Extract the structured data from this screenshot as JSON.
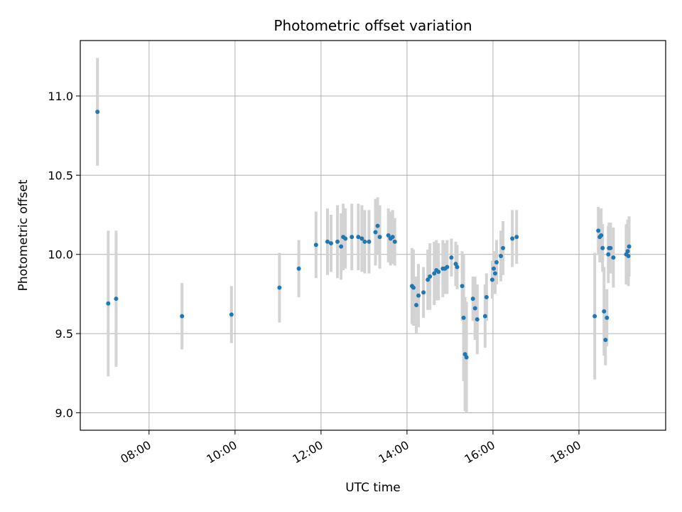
{
  "chart_data": {
    "type": "scatter",
    "title": "Photometric offset variation",
    "xlabel": "UTC time",
    "ylabel": "Photometric offset",
    "x_tick_labels": [
      "08:00",
      "10:00",
      "12:00",
      "14:00",
      "16:00",
      "18:00"
    ],
    "y_tick_labels": [
      "9.0",
      "9.5",
      "10.0",
      "10.5",
      "11.0"
    ],
    "xlim": [
      "06:24",
      "20:01"
    ],
    "ylim": [
      8.89,
      11.35
    ],
    "grid": true,
    "marker_color": "#1f77b4",
    "errorbar_color": "#d3d3d3",
    "series": [
      {
        "x": [
          "06:48",
          "07:03",
          "07:14",
          "08:46",
          "09:55",
          "11:02",
          "11:29",
          "11:53",
          "12:09",
          "12:14",
          "12:23",
          "12:28",
          "12:31",
          "12:34",
          "12:43",
          "12:52",
          "12:57",
          "13:01",
          "13:07",
          "13:16",
          "13:19",
          "13:22",
          "13:34",
          "13:37",
          "13:40",
          "13:43",
          "14:07",
          "14:09",
          "14:13",
          "14:16",
          "14:23",
          "14:29",
          "14:32",
          "14:38",
          "14:41",
          "14:44",
          "14:50",
          "14:53",
          "14:56",
          "15:02",
          "15:08",
          "15:10",
          "15:17",
          "15:19",
          "15:21",
          "15:23",
          "15:32",
          "15:35",
          "15:38",
          "15:49",
          "15:51",
          "15:59",
          "16:01",
          "16:03",
          "16:05",
          "16:11",
          "16:14",
          "16:27",
          "16:33",
          "18:22",
          "18:27",
          "18:29",
          "18:31",
          "18:33",
          "18:35",
          "18:37",
          "18:39",
          "18:41",
          "18:42",
          "18:44",
          "18:48",
          "19:06",
          "19:08",
          "19:09",
          "19:10"
        ],
        "y": [
          10.9,
          9.69,
          9.72,
          9.61,
          9.62,
          9.79,
          9.91,
          10.06,
          10.08,
          10.07,
          10.08,
          10.05,
          10.11,
          10.1,
          10.11,
          10.11,
          10.1,
          10.08,
          10.08,
          10.14,
          10.18,
          10.11,
          10.12,
          10.1,
          10.11,
          10.08,
          9.8,
          9.79,
          9.68,
          9.74,
          9.76,
          9.84,
          9.86,
          9.88,
          9.9,
          9.89,
          9.91,
          9.91,
          9.92,
          9.98,
          9.94,
          9.92,
          9.8,
          9.6,
          9.37,
          9.35,
          9.72,
          9.66,
          9.59,
          9.61,
          9.73,
          9.84,
          9.91,
          9.88,
          9.95,
          9.99,
          10.04,
          10.1,
          10.11,
          9.61,
          10.15,
          10.11,
          10.12,
          10.04,
          9.64,
          9.46,
          9.6,
          10.0,
          10.04,
          10.04,
          9.98,
          10.0,
          10.02,
          9.99,
          10.05
        ],
        "err": [
          0.34,
          0.46,
          0.43,
          0.21,
          0.18,
          0.22,
          0.18,
          0.21,
          0.21,
          0.18,
          0.23,
          0.21,
          0.21,
          0.19,
          0.21,
          0.21,
          0.21,
          0.2,
          0.2,
          0.21,
          0.18,
          0.2,
          0.17,
          0.17,
          0.17,
          0.15,
          0.24,
          0.24,
          0.18,
          0.2,
          0.16,
          0.19,
          0.21,
          0.2,
          0.19,
          0.18,
          0.18,
          0.16,
          0.17,
          0.12,
          0.14,
          0.14,
          0.22,
          0.4,
          0.36,
          0.35,
          0.14,
          0.2,
          0.22,
          0.2,
          0.15,
          0.12,
          0.11,
          0.13,
          0.14,
          0.16,
          0.17,
          0.18,
          0.17,
          0.4,
          0.15,
          0.16,
          0.17,
          0.15,
          0.28,
          0.16,
          0.18,
          0.18,
          0.16,
          0.16,
          0.19,
          0.19,
          0.2,
          0.19,
          0.19
        ]
      }
    ]
  }
}
